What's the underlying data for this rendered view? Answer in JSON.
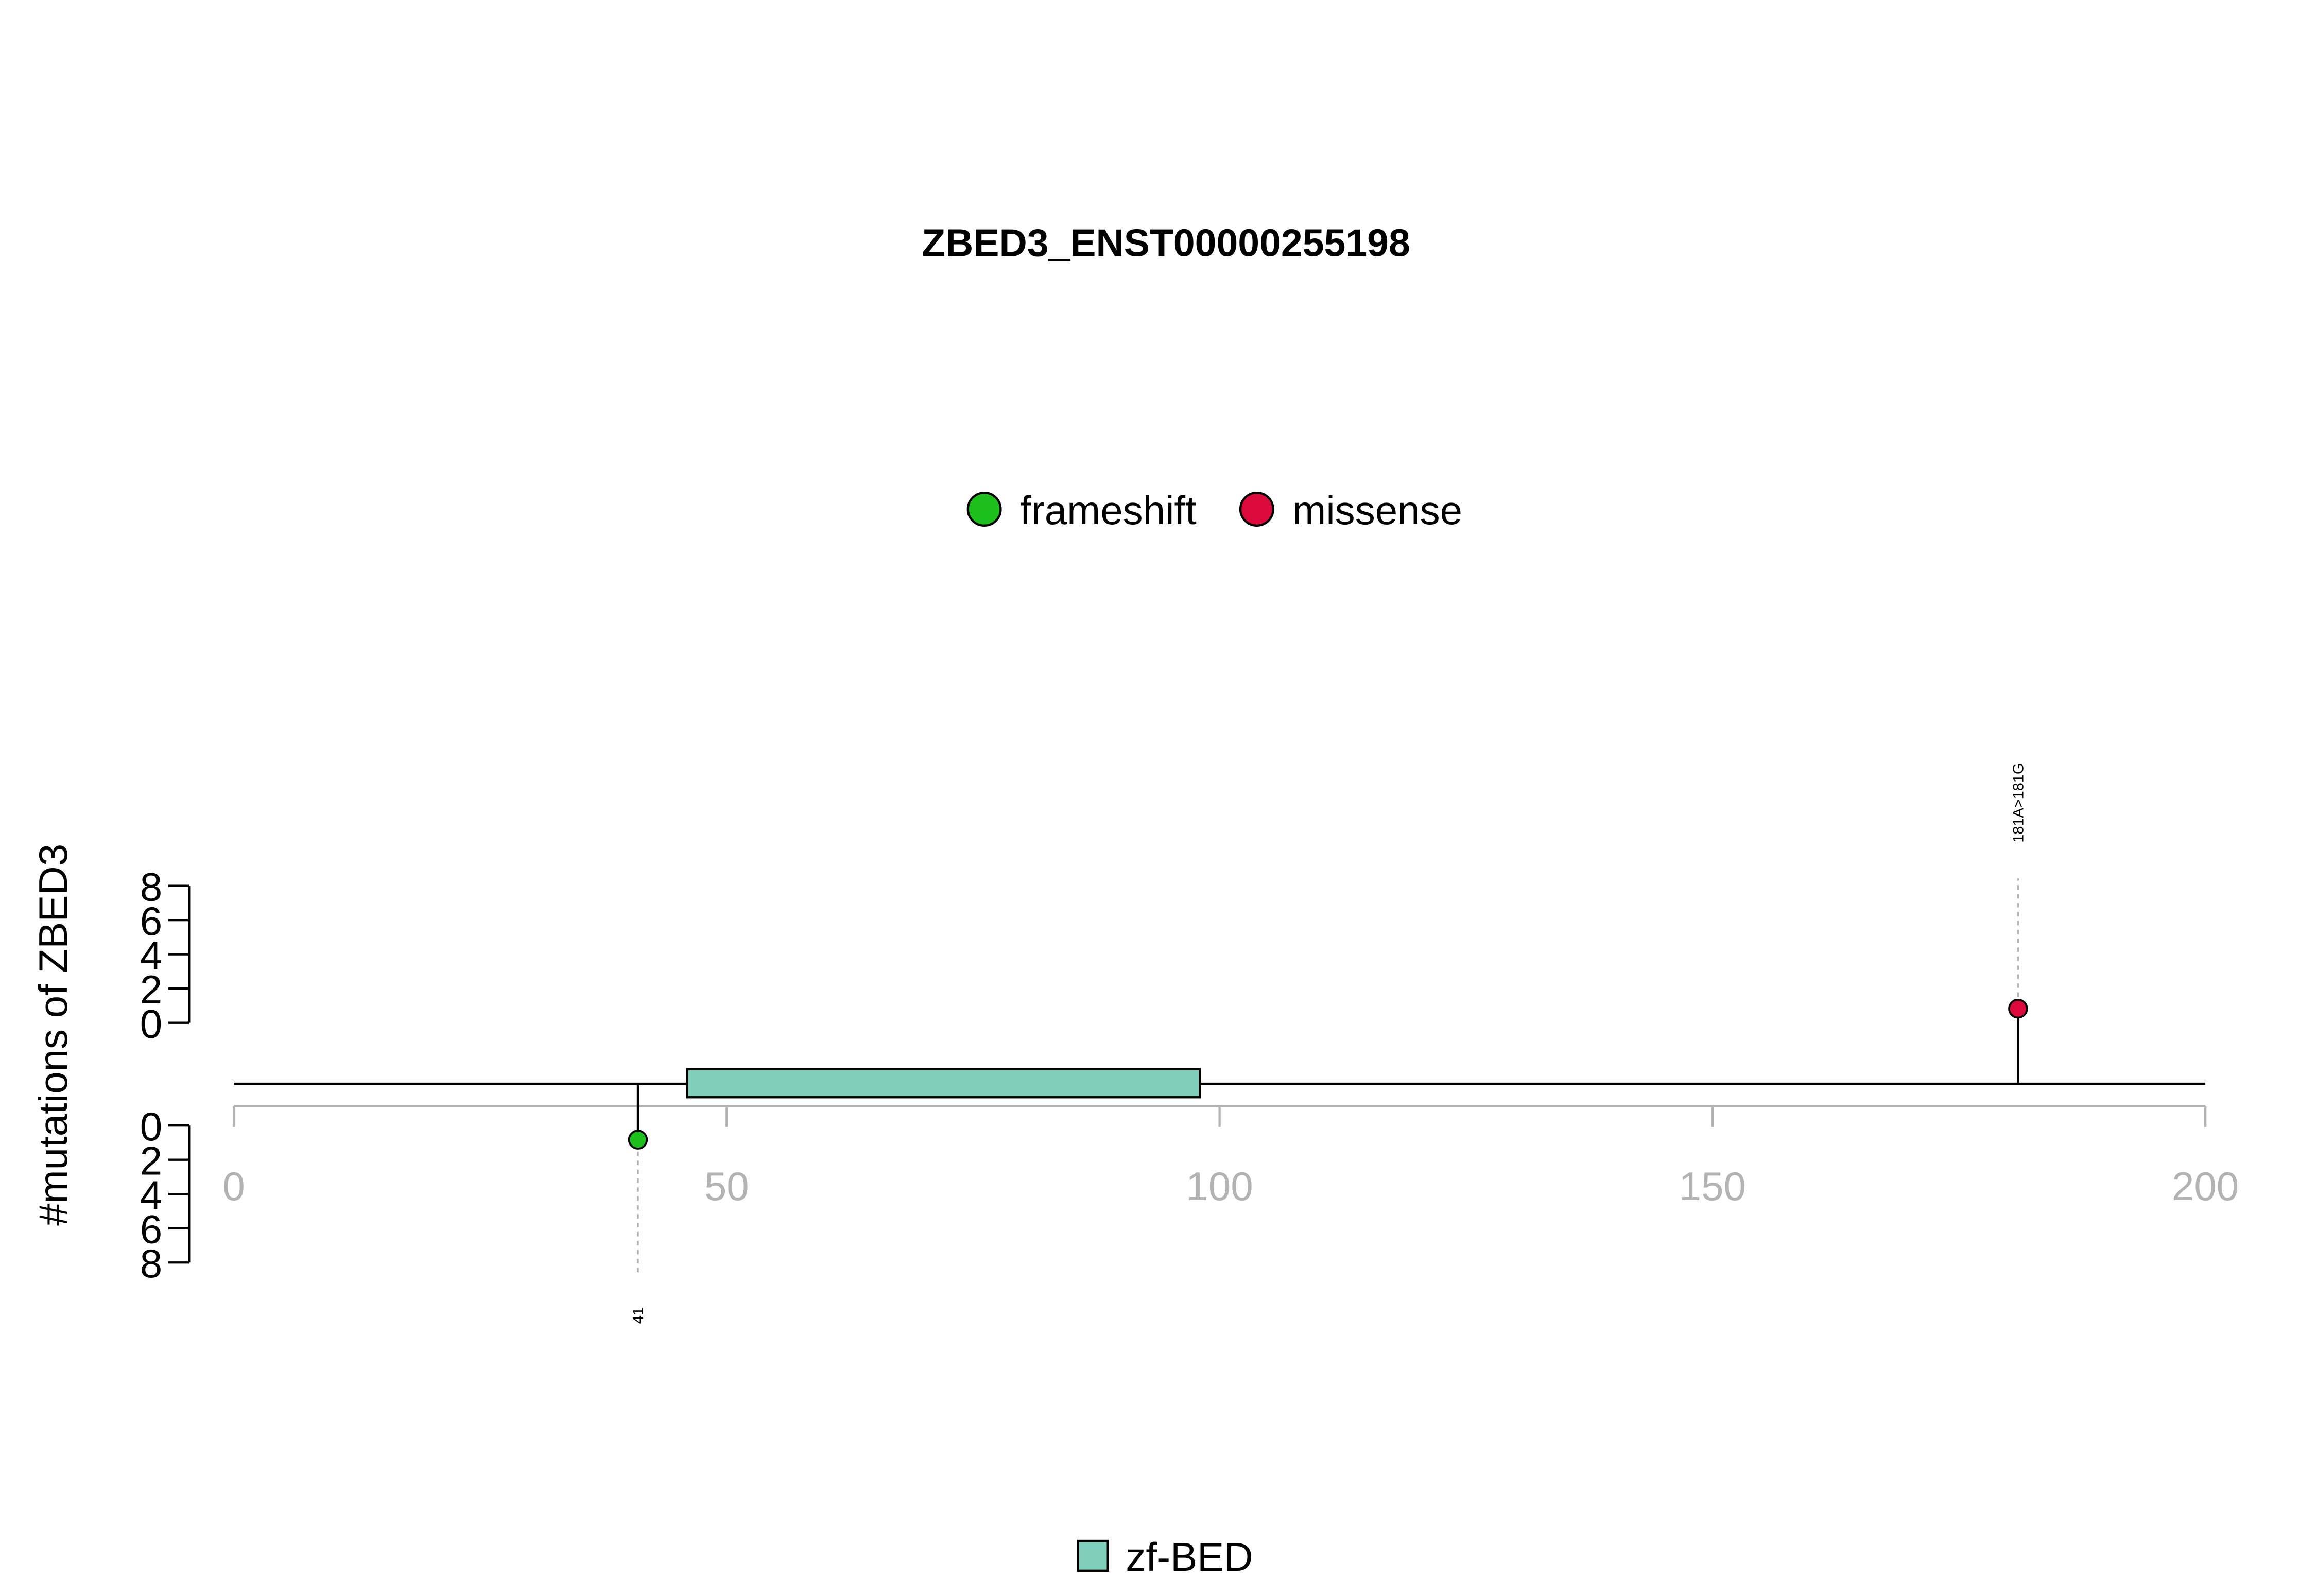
{
  "chart_data": {
    "type": "lollipop",
    "title": "ZBED3_ENST00000255198",
    "ylabel": "#mutations of ZBED3",
    "xlim": [
      0,
      200
    ],
    "x_ticks": [
      0,
      50,
      100,
      150,
      200
    ],
    "y_ticks_up": [
      0,
      2,
      4,
      6,
      8
    ],
    "y_ticks_down": [
      0,
      2,
      4,
      6,
      8
    ],
    "legend": [
      {
        "label": "frameshift",
        "color": "#1cbf1c"
      },
      {
        "label": "missense",
        "color": "#dc0a3c"
      }
    ],
    "domains": [
      {
        "name": "zf-BED",
        "start": 46,
        "end": 98,
        "color": "#7fcdbb"
      }
    ],
    "mutations": [
      {
        "position": 41,
        "label": "41",
        "type": "frameshift",
        "count": 1,
        "side": "down",
        "color": "#1cbf1c"
      },
      {
        "position": 181,
        "label": "181A>181G",
        "type": "missense",
        "count": 1,
        "side": "up",
        "color": "#dc0a3c"
      }
    ]
  }
}
